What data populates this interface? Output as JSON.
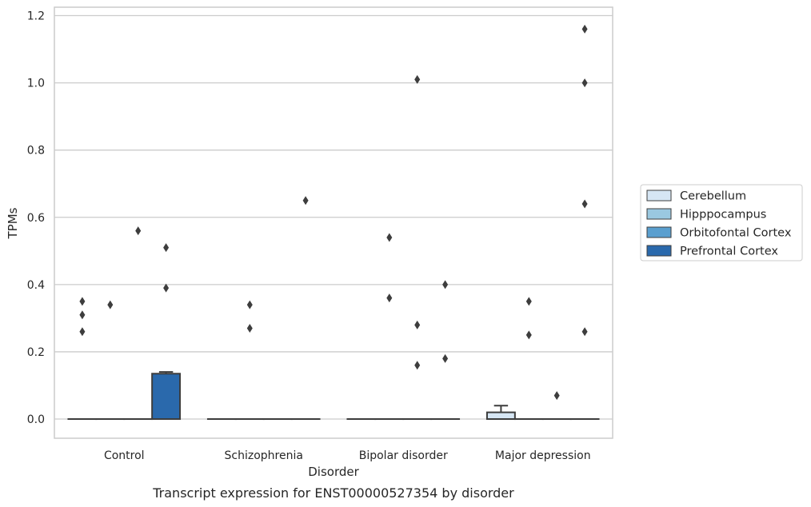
{
  "chart_data": {
    "type": "box",
    "caption": "Transcript expression for ENST00000527354 by disorder",
    "xlabel": "Disorder",
    "ylabel": "TPMs",
    "ylim": [
      -0.057,
      1.225
    ],
    "yticks": [
      0.0,
      0.2,
      0.4,
      0.6,
      0.8,
      1.0,
      1.2
    ],
    "ytick_labels": [
      "0.0",
      "0.2",
      "0.4",
      "0.6",
      "0.8",
      "1.0",
      "1.2"
    ],
    "grid": "horizontal",
    "legend_position": "right",
    "categories": [
      "Control",
      "Schizophrenia",
      "Bipolar disorder",
      "Major depression"
    ],
    "series": [
      {
        "name": "Cerebellum",
        "color": "#d6e6f4",
        "boxes": [
          {
            "q1": 0,
            "median": 0,
            "q3": 0,
            "whisker_low": 0,
            "whisker_high": 0,
            "outliers": [
              0.35,
              0.31,
              0.26
            ]
          },
          {
            "q1": 0,
            "median": 0,
            "q3": 0,
            "whisker_low": 0,
            "whisker_high": 0,
            "outliers": []
          },
          {
            "q1": 0,
            "median": 0,
            "q3": 0,
            "whisker_low": 0,
            "whisker_high": 0,
            "outliers": []
          },
          {
            "q1": 0,
            "median": 0,
            "q3": 0.02,
            "whisker_low": 0,
            "whisker_high": 0.04,
            "outliers": []
          }
        ]
      },
      {
        "name": "Hipppocampus",
        "color": "#9ac8e0",
        "boxes": [
          {
            "q1": 0,
            "median": 0,
            "q3": 0,
            "whisker_low": 0,
            "whisker_high": 0,
            "outliers": [
              0.34
            ]
          },
          {
            "q1": 0,
            "median": 0,
            "q3": 0,
            "whisker_low": 0,
            "whisker_high": 0,
            "outliers": [
              0.34,
              0.27
            ]
          },
          {
            "q1": 0,
            "median": 0,
            "q3": 0,
            "whisker_low": 0,
            "whisker_high": 0,
            "outliers": [
              0.54,
              0.36
            ]
          },
          {
            "q1": 0,
            "median": 0,
            "q3": 0,
            "whisker_low": 0,
            "whisker_high": 0,
            "outliers": [
              0.35,
              0.25
            ]
          }
        ]
      },
      {
        "name": "Orbitofontal Cortex",
        "color": "#5a9fcf",
        "boxes": [
          {
            "q1": 0,
            "median": 0,
            "q3": 0,
            "whisker_low": 0,
            "whisker_high": 0,
            "outliers": [
              0.56
            ]
          },
          {
            "q1": 0,
            "median": 0,
            "q3": 0,
            "whisker_low": 0,
            "whisker_high": 0,
            "outliers": []
          },
          {
            "q1": 0,
            "median": 0,
            "q3": 0,
            "whisker_low": 0,
            "whisker_high": 0,
            "outliers": [
              1.01,
              0.28,
              0.16
            ]
          },
          {
            "q1": 0,
            "median": 0,
            "q3": 0,
            "whisker_low": 0,
            "whisker_high": 0,
            "outliers": [
              0.07
            ]
          }
        ]
      },
      {
        "name": "Prefrontal Cortex",
        "color": "#2a69ac",
        "boxes": [
          {
            "q1": 0,
            "median": 0,
            "q3": 0.135,
            "whisker_low": 0,
            "whisker_high": 0.14,
            "outliers": [
              0.51,
              0.39
            ]
          },
          {
            "q1": 0,
            "median": 0,
            "q3": 0,
            "whisker_low": 0,
            "whisker_high": 0,
            "outliers": [
              0.65
            ]
          },
          {
            "q1": 0,
            "median": 0,
            "q3": 0,
            "whisker_low": 0,
            "whisker_high": 0,
            "outliers": [
              0.4,
              0.18
            ]
          },
          {
            "q1": 0,
            "median": 0,
            "q3": 0,
            "whisker_low": 0,
            "whisker_high": 0,
            "outliers": [
              1.16,
              1.0,
              0.64,
              0.26
            ]
          }
        ]
      }
    ]
  },
  "colors": {
    "grid": "#cccccc",
    "frame": "#cccccc",
    "box_edge": "#3d3d3d",
    "outlier": "#3d3d3d"
  }
}
